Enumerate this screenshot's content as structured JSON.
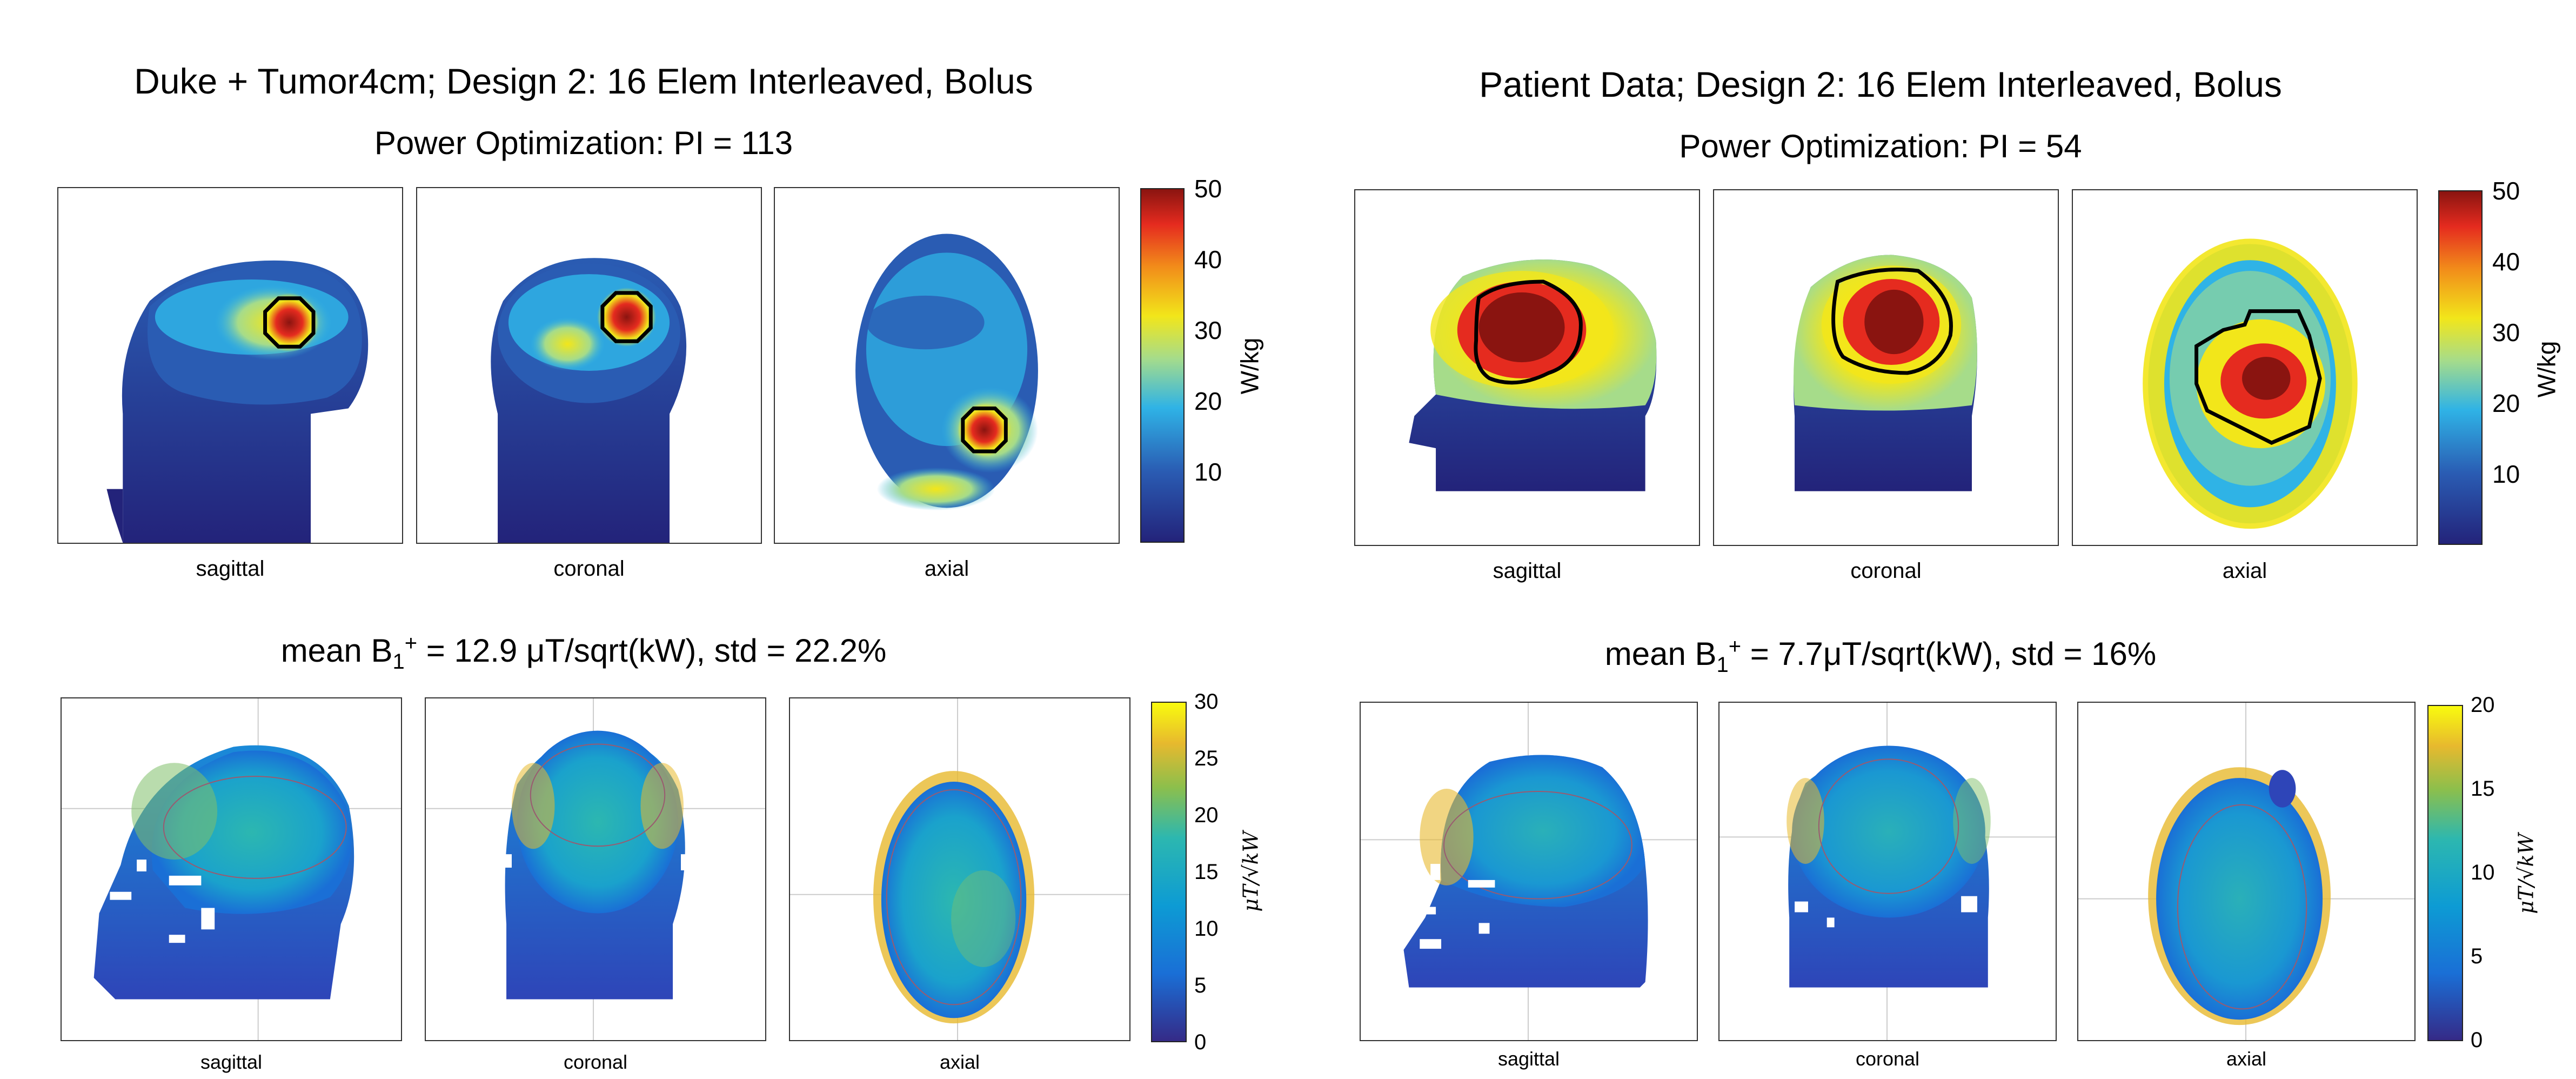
{
  "figures": [
    {
      "id": "duke",
      "title": "Duke + Tumor4cm; Design 2: 16 Elem Interleaved, Bolus",
      "power_subtitle": "Power Optimization: PI = 113",
      "b1_subtitle": "mean B1+ = 12.9 μT/sqrt(kW), std = 22.2%",
      "b1_subtitle_parts": {
        "pre": "mean B",
        "sub": "1",
        "sup": "+",
        "post": " = 12.9 μT/sqrt(kW), std = 22.2%"
      },
      "views": [
        "sagittal",
        "coronal",
        "axial"
      ],
      "sar_colorbar": {
        "unit": "W/kg",
        "ticks": [
          "50",
          "40",
          "30",
          "20",
          "10"
        ],
        "range": [
          0,
          50
        ]
      },
      "b1_colorbar": {
        "unit": "μT/√kW",
        "ticks": [
          "30",
          "25",
          "20",
          "15",
          "10",
          "5",
          "0"
        ],
        "range": [
          0,
          30
        ]
      }
    },
    {
      "id": "patient",
      "title": "Patient Data; Design 2: 16 Elem Interleaved, Bolus",
      "power_subtitle": "Power Optimization: PI = 54",
      "b1_subtitle": "mean B1+ = 7.7μT/sqrt(kW), std = 16%",
      "b1_subtitle_parts": {
        "pre": "mean B",
        "sub": "1",
        "sup": "+",
        "post": " = 7.7μT/sqrt(kW), std = 16%"
      },
      "views": [
        "sagittal",
        "coronal",
        "axial"
      ],
      "sar_colorbar": {
        "unit": "W/kg",
        "ticks": [
          "50",
          "40",
          "30",
          "20",
          "10"
        ],
        "range": [
          0,
          50
        ]
      },
      "b1_colorbar": {
        "unit": "μT/√kW",
        "ticks": [
          "20",
          "15",
          "10",
          "5",
          "0"
        ],
        "range": [
          0,
          20
        ]
      }
    }
  ],
  "colors": {
    "parula_top": "#f9fb0e",
    "parula_mid": "#2cb7b0",
    "parula_bottom": "#352a87",
    "jet_top": "#7f0000",
    "jet_bottom": "#00007f",
    "contour": "#000000"
  }
}
